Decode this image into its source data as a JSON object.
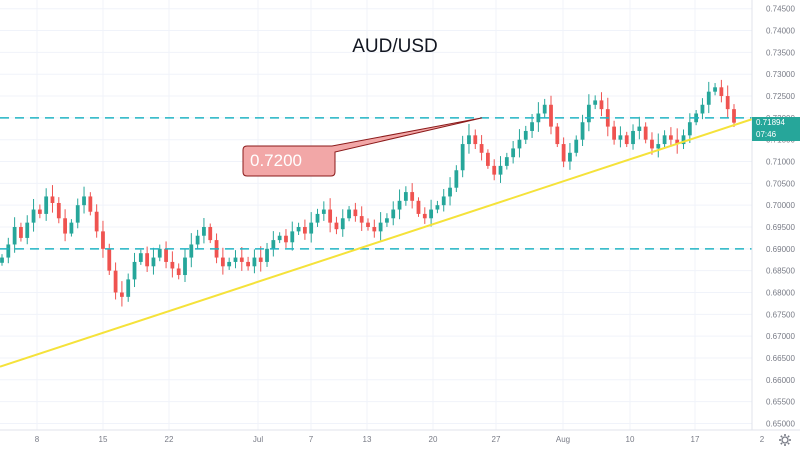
{
  "chart_title": "AUD/USD",
  "callout_label": "0.7200",
  "last_price": "0.71894",
  "countdown": "07:46",
  "colors": {
    "up": "#26a69a",
    "down": "#ef5350",
    "trendline": "#f5e23a",
    "hline": "#21b4c4",
    "callout_fill": "#f2a7a7",
    "callout_border": "#8b1a1a",
    "price_tag": "#26a69a"
  },
  "icons": {
    "settings": "gear-icon"
  },
  "chart_data": {
    "type": "candlestick",
    "title": "AUD/USD",
    "x_ticks": [
      "8",
      "15",
      "22",
      "Jul",
      "7",
      "13",
      "20",
      "27",
      "Aug",
      "10",
      "17",
      "2"
    ],
    "y_ticks": [
      "0.74500",
      "0.74000",
      "0.73500",
      "0.73000",
      "0.72500",
      "0.72000",
      "0.71500",
      "0.71000",
      "0.70500",
      "0.70000",
      "0.69500",
      "0.69000",
      "0.68500",
      "0.68000",
      "0.67500",
      "0.67000",
      "0.66500",
      "0.66000",
      "0.65500",
      "0.65000"
    ],
    "ylim": [
      0.6485,
      0.747
    ],
    "horizontal_levels": [
      0.72,
      0.69
    ],
    "trendline": {
      "from": {
        "x": "June 1",
        "y": 0.663
      },
      "to": {
        "x": "Aug 21",
        "y": 0.72
      }
    },
    "last_price": 0.71894,
    "grid": true,
    "closes": [
      0.688,
      0.691,
      0.695,
      0.6925,
      0.696,
      0.699,
      0.698,
      0.702,
      0.7005,
      0.697,
      0.6935,
      0.696,
      0.7,
      0.702,
      0.6985,
      0.694,
      0.69,
      0.685,
      0.68,
      0.679,
      0.683,
      0.687,
      0.689,
      0.686,
      0.688,
      0.69,
      0.687,
      0.6855,
      0.684,
      0.688,
      0.691,
      0.693,
      0.695,
      0.692,
      0.688,
      0.686,
      0.687,
      0.688,
      0.687,
      0.686,
      0.688,
      0.687,
      0.69,
      0.692,
      0.693,
      0.6915,
      0.694,
      0.695,
      0.6935,
      0.696,
      0.698,
      0.699,
      0.696,
      0.6945,
      0.697,
      0.699,
      0.6975,
      0.696,
      0.695,
      0.694,
      0.696,
      0.697,
      0.699,
      0.701,
      0.703,
      0.701,
      0.698,
      0.697,
      0.699,
      0.7,
      0.702,
      0.704,
      0.708,
      0.714,
      0.716,
      0.714,
      0.712,
      0.709,
      0.707,
      0.709,
      0.711,
      0.713,
      0.715,
      0.717,
      0.719,
      0.721,
      0.723,
      0.718,
      0.714,
      0.71,
      0.712,
      0.715,
      0.719,
      0.723,
      0.724,
      0.722,
      0.718,
      0.715,
      0.716,
      0.714,
      0.717,
      0.718,
      0.715,
      0.713,
      0.714,
      0.716,
      0.715,
      0.714,
      0.716,
      0.719,
      0.721,
      0.723,
      0.726,
      0.727,
      0.725,
      0.722,
      0.7189
    ]
  }
}
